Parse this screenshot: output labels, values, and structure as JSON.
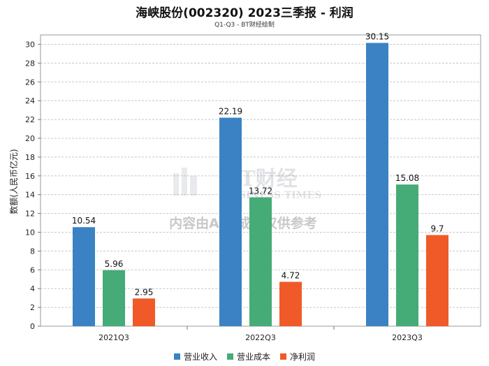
{
  "chart_data": {
    "type": "bar",
    "title": "海峡股份(002320) 2023三季报 - 利润",
    "subtitle": "Q1-Q3 - BT财经绘制",
    "ylabel": "数额(人民币亿元)",
    "xlabel": "",
    "categories": [
      "2021Q3",
      "2022Q3",
      "2023Q3"
    ],
    "series": [
      {
        "name": "营业收入",
        "color": "#3a82c4",
        "values": [
          10.54,
          22.19,
          30.15
        ],
        "labels": [
          "10.54",
          "22.19",
          "30.15"
        ]
      },
      {
        "name": "营业成本",
        "color": "#45ab77",
        "values": [
          5.96,
          13.72,
          15.08
        ],
        "labels": [
          "5.96",
          "13.72",
          "15.08"
        ]
      },
      {
        "name": "净利润",
        "color": "#f05a28",
        "values": [
          2.95,
          4.72,
          9.7
        ],
        "labels": [
          "2.95",
          "4.72",
          "9.7"
        ]
      }
    ],
    "ylim": [
      0,
      31
    ],
    "yticks": [
      0,
      2,
      4,
      6,
      8,
      10,
      12,
      14,
      16,
      18,
      20,
      22,
      24,
      26,
      28,
      30
    ],
    "grid": true,
    "legend_position": "bottom"
  },
  "watermark": {
    "brand": "BT财经",
    "brand_sub": "BUSINESS TIMES",
    "notice": "内容由AI生成，仅供参考"
  }
}
